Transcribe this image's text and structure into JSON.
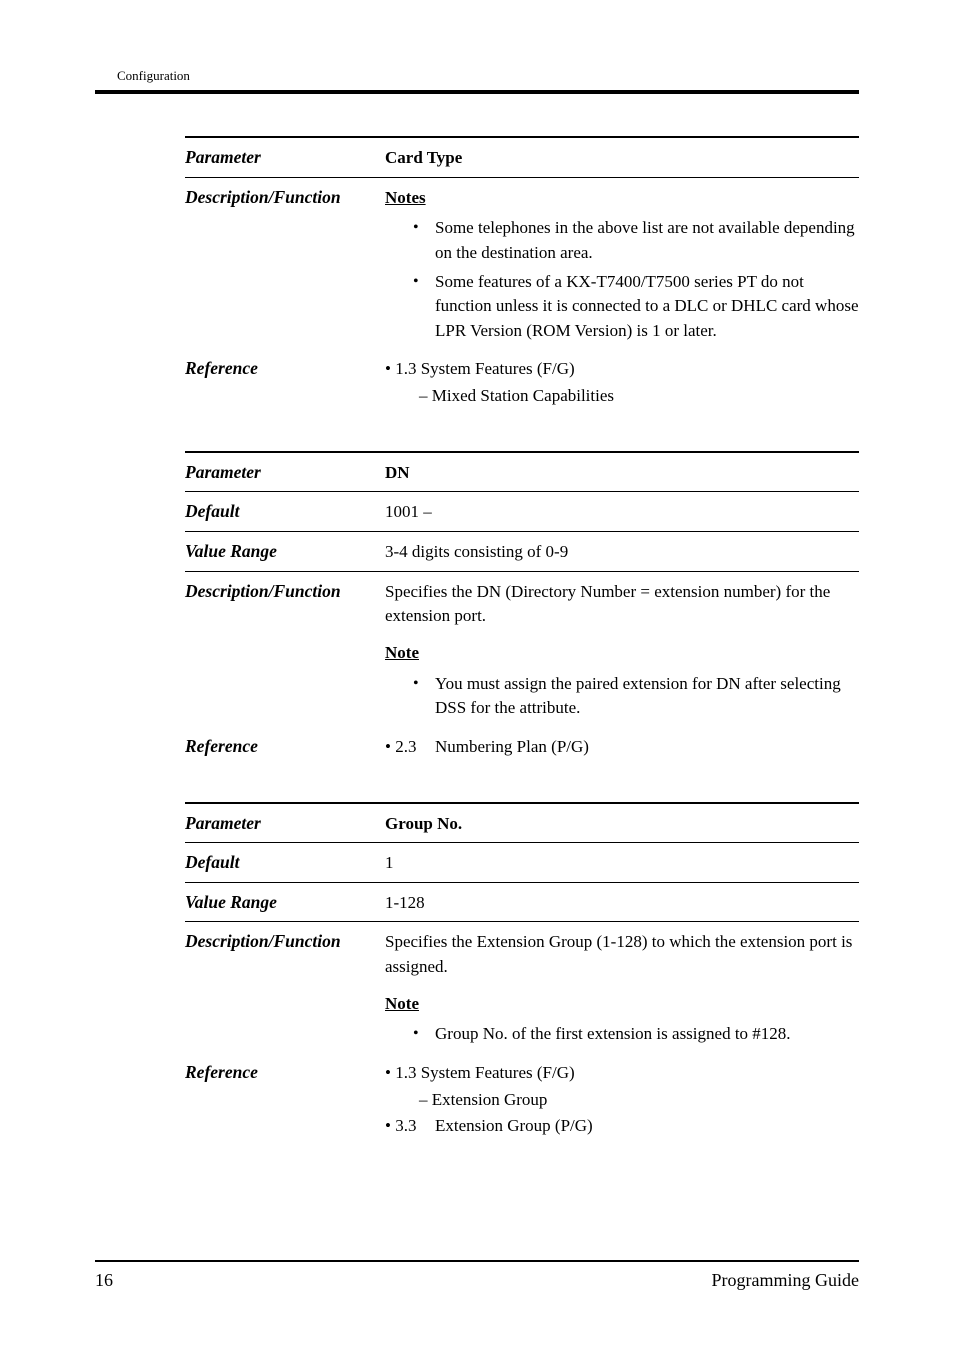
{
  "header": {
    "running": "Configuration"
  },
  "blocks": [
    {
      "rows": [
        {
          "type": "param-header",
          "label": "Parameter",
          "bold_value": "Card Type",
          "rule": "thick"
        },
        {
          "type": "notes",
          "label": "Description/Function",
          "heading": "Notes",
          "items": [
            "Some telephones in the above list are not available depending on the destination area.",
            "Some features of a KX-T7400/T7500 series PT do not function unless it is connected to a DLC or DHLC card whose LPR Version (ROM Version) is 1 or later."
          ],
          "rule": "thin"
        },
        {
          "type": "reference",
          "label": "Reference",
          "lines": [
            {
              "kind": "top",
              "text": "• 1.3 System Features (F/G)"
            },
            {
              "kind": "sub",
              "text": "– Mixed Station Capabilities"
            }
          ]
        }
      ]
    },
    {
      "rows": [
        {
          "type": "param-header",
          "label": "Parameter",
          "bold_value": "DN",
          "rule": "thick"
        },
        {
          "type": "plain",
          "label": "Default",
          "value": "1001 –",
          "rule": "thin"
        },
        {
          "type": "plain",
          "label": "Value Range",
          "value": "3-4 digits consisting of 0-9",
          "rule": "thin"
        },
        {
          "type": "desc-with-note",
          "label": "Description/Function",
          "desc": "Specifies the DN (Directory Number = extension number) for the extension port.",
          "note_heading": "Note",
          "note_items": [
            "You must assign the paired extension for DN after selecting DSS for the attribute."
          ],
          "rule": "thin"
        },
        {
          "type": "reference",
          "label": "Reference",
          "lines": [
            {
              "kind": "pair",
              "num": "• 2.3",
              "text": "Numbering Plan (P/G)"
            }
          ]
        }
      ]
    },
    {
      "rows": [
        {
          "type": "param-header",
          "label": "Parameter",
          "bold_value": "Group No.",
          "rule": "thick"
        },
        {
          "type": "plain",
          "label": "Default",
          "value": "1",
          "rule": "thin"
        },
        {
          "type": "plain",
          "label": "Value Range",
          "value": "1-128",
          "rule": "thin"
        },
        {
          "type": "desc-with-note",
          "label": "Description/Function",
          "desc": "Specifies the Extension Group (1-128) to which the extension port is assigned.",
          "note_heading": "Note",
          "note_items": [
            "Group No. of the first extension is assigned to #128."
          ],
          "rule": "thin"
        },
        {
          "type": "reference",
          "label": "Reference",
          "lines": [
            {
              "kind": "top",
              "text": "• 1.3 System Features (F/G)"
            },
            {
              "kind": "sub",
              "text": "– Extension Group"
            },
            {
              "kind": "pair",
              "num": "• 3.3",
              "text": "Extension Group (P/G)"
            }
          ]
        }
      ]
    }
  ],
  "footer": {
    "page": "16",
    "guide": "Programming Guide"
  }
}
